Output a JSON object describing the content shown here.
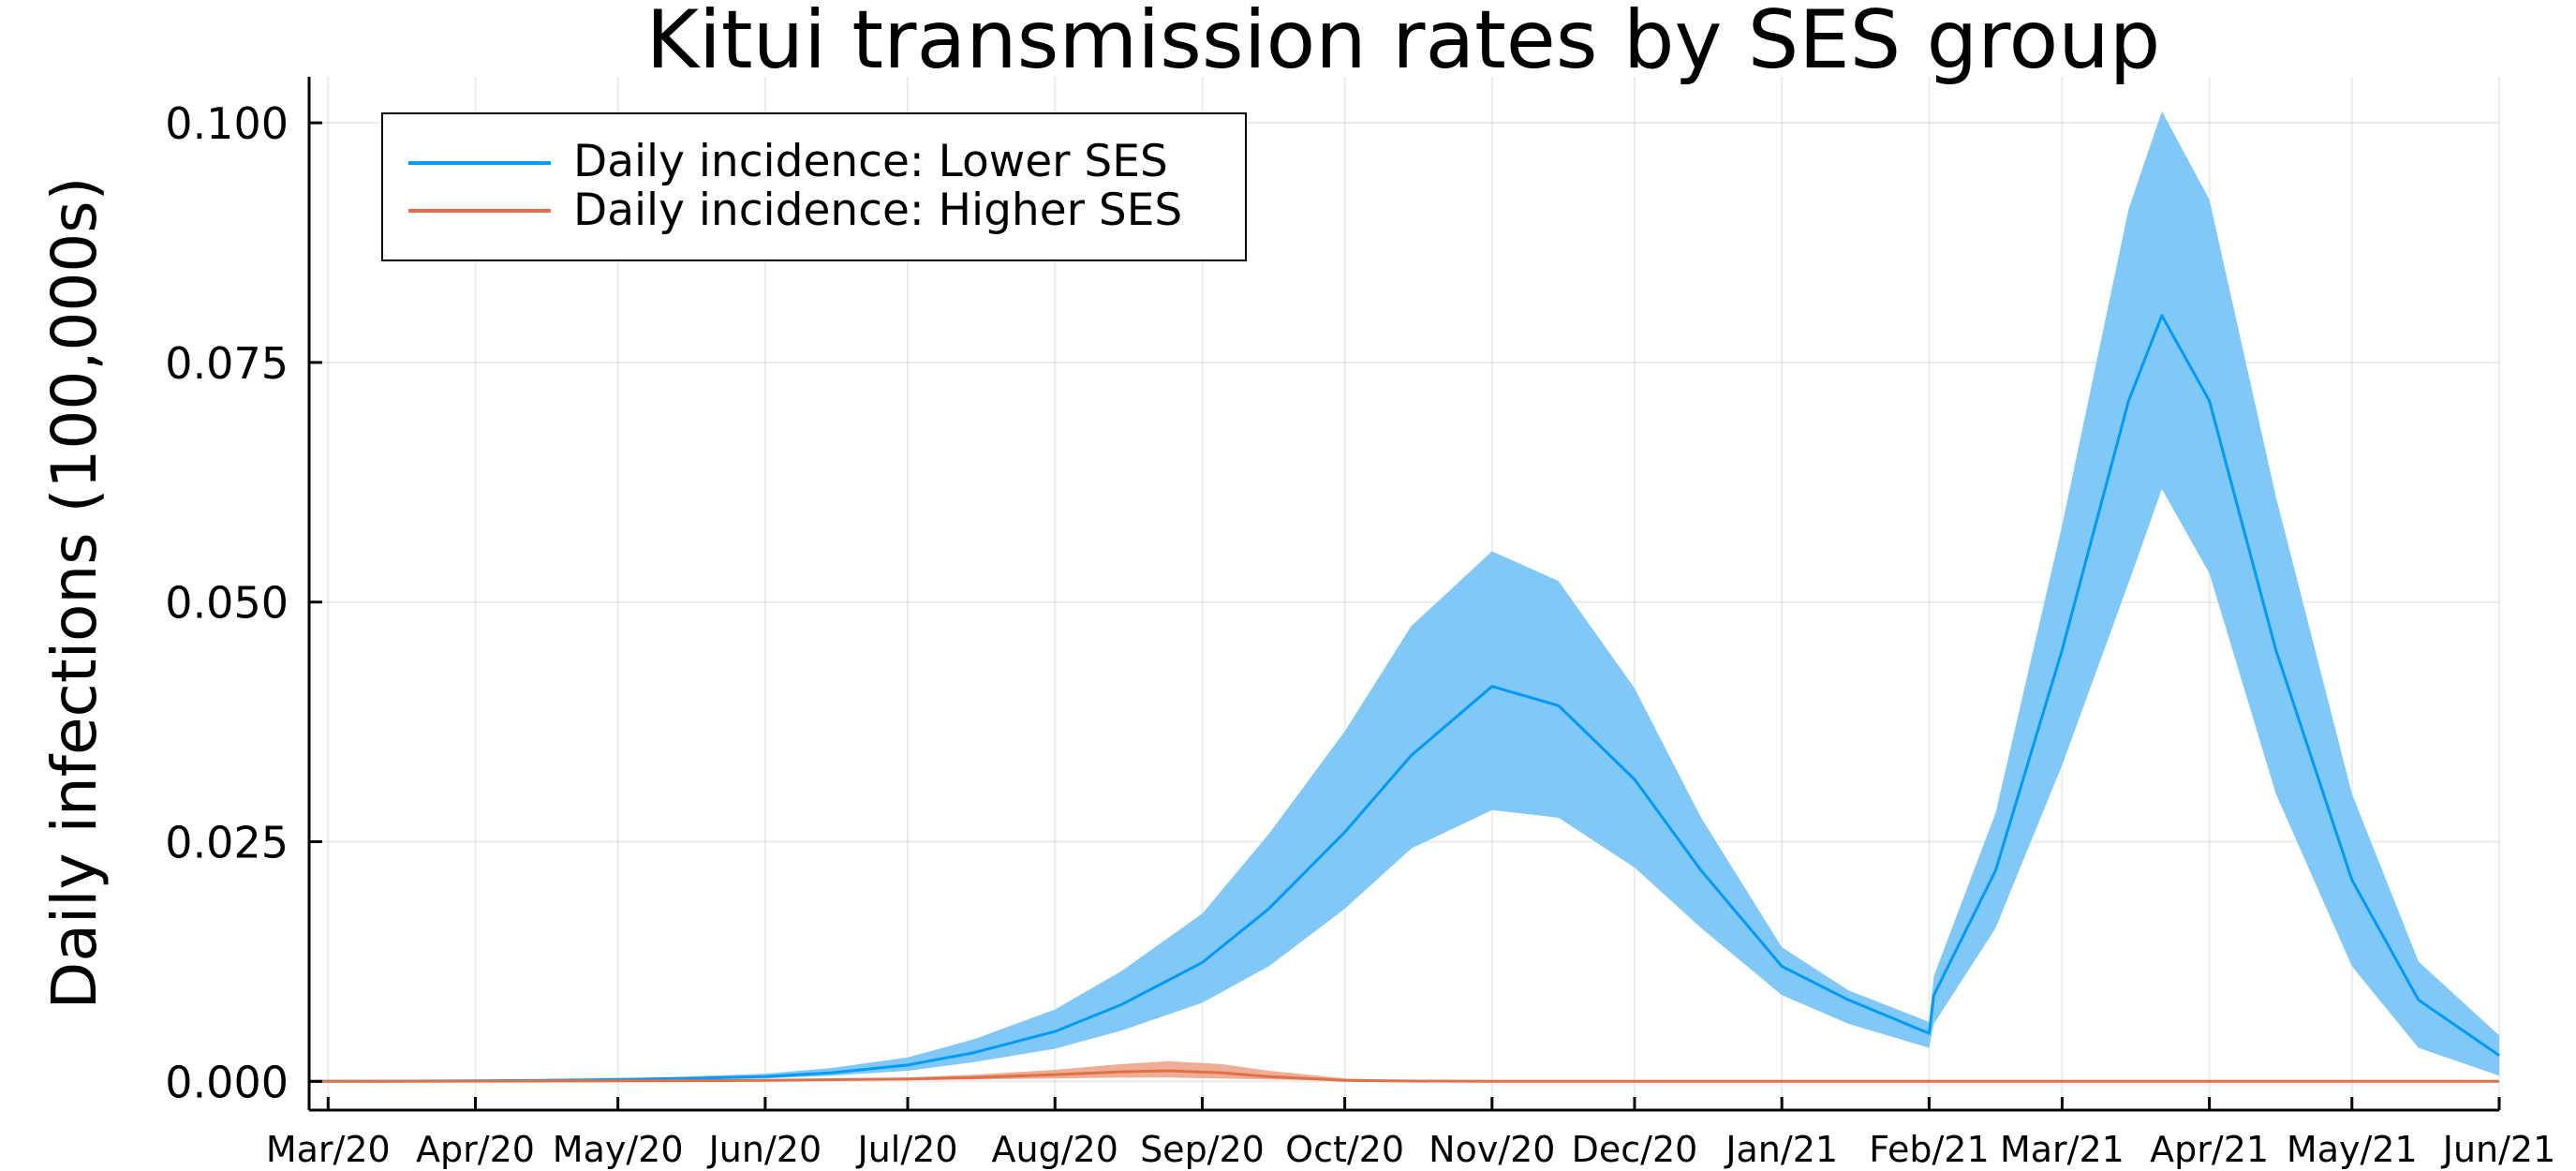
{
  "chart_data": {
    "type": "area",
    "title": "Kitui transmission rates by SES group",
    "xlabel": "",
    "ylabel": "Daily infections (100,000s)",
    "grid": true,
    "legend_position": "top-left",
    "x_axis": {
      "type": "date",
      "range": [
        "2020-02-26",
        "2021-06-01"
      ],
      "ticks": [
        {
          "date": "2020-03-01",
          "label": "Mar/20"
        },
        {
          "date": "2020-04-01",
          "label": "Apr/20"
        },
        {
          "date": "2020-05-01",
          "label": "May/20"
        },
        {
          "date": "2020-06-01",
          "label": "Jun/20"
        },
        {
          "date": "2020-07-01",
          "label": "Jul/20"
        },
        {
          "date": "2020-08-01",
          "label": "Aug/20"
        },
        {
          "date": "2020-09-01",
          "label": "Sep/20"
        },
        {
          "date": "2020-10-01",
          "label": "Oct/20"
        },
        {
          "date": "2020-11-01",
          "label": "Nov/20"
        },
        {
          "date": "2020-12-01",
          "label": "Dec/20"
        },
        {
          "date": "2021-01-01",
          "label": "Jan/21"
        },
        {
          "date": "2021-02-01",
          "label": "Feb/21"
        },
        {
          "date": "2021-03-01",
          "label": "Mar/21"
        },
        {
          "date": "2021-04-01",
          "label": "Apr/21"
        },
        {
          "date": "2021-05-01",
          "label": "May/21"
        },
        {
          "date": "2021-06-01",
          "label": "Jun/21"
        }
      ]
    },
    "y_axis": {
      "range": [
        -0.003,
        0.1048
      ],
      "ticks": [
        0.0,
        0.025,
        0.05,
        0.075,
        0.1
      ],
      "tick_labels": [
        "0.000",
        "0.025",
        "0.050",
        "0.075",
        "0.100"
      ]
    },
    "series": [
      {
        "name": "Daily incidence: Lower SES",
        "color": "#009AFA",
        "band_color": "#80C8F8",
        "x": [
          "2020-02-26",
          "2020-03-15",
          "2020-04-01",
          "2020-04-15",
          "2020-05-01",
          "2020-05-15",
          "2020-06-01",
          "2020-06-15",
          "2020-07-01",
          "2020-07-15",
          "2020-08-01",
          "2020-08-15",
          "2020-09-01",
          "2020-09-15",
          "2020-10-01",
          "2020-10-15",
          "2020-11-01",
          "2020-11-15",
          "2020-12-01",
          "2020-12-15",
          "2021-01-01",
          "2021-01-15",
          "2021-02-01",
          "2021-02-02",
          "2021-02-15",
          "2021-03-01",
          "2021-03-15",
          "2021-03-22",
          "2021-04-01",
          "2021-04-15",
          "2021-05-01",
          "2021-05-15",
          "2021-06-01"
        ],
        "mid": [
          0.0,
          2e-05,
          5e-05,
          0.0001,
          0.0002,
          0.0003,
          0.0005,
          0.0009,
          0.0017,
          0.003,
          0.0052,
          0.008,
          0.0124,
          0.018,
          0.026,
          0.034,
          0.0412,
          0.0392,
          0.0315,
          0.022,
          0.012,
          0.0085,
          0.005,
          0.009,
          0.022,
          0.045,
          0.071,
          0.0799,
          0.071,
          0.045,
          0.021,
          0.0085,
          0.0027
        ],
        "upper": [
          0.0,
          3e-05,
          8e-05,
          0.00015,
          0.0003,
          0.0005,
          0.0008,
          0.0014,
          0.0025,
          0.0044,
          0.0075,
          0.0115,
          0.0175,
          0.0258,
          0.0365,
          0.0475,
          0.0553,
          0.0522,
          0.041,
          0.0275,
          0.014,
          0.0095,
          0.0062,
          0.011,
          0.028,
          0.058,
          0.091,
          0.1012,
          0.092,
          0.061,
          0.03,
          0.0125,
          0.0048
        ],
        "lower": [
          0.0,
          1e-05,
          3e-05,
          6e-05,
          0.0001,
          0.0002,
          0.0003,
          0.0006,
          0.0011,
          0.002,
          0.0034,
          0.0053,
          0.0082,
          0.012,
          0.018,
          0.0243,
          0.0283,
          0.0275,
          0.0223,
          0.016,
          0.009,
          0.006,
          0.0035,
          0.006,
          0.016,
          0.033,
          0.052,
          0.0618,
          0.053,
          0.03,
          0.012,
          0.0035,
          0.0006
        ]
      },
      {
        "name": "Daily incidence: Higher SES",
        "color": "#E26F46",
        "band_color": "#EEAD94",
        "x": [
          "2020-02-26",
          "2020-04-01",
          "2020-05-01",
          "2020-06-01",
          "2020-07-01",
          "2020-07-15",
          "2020-08-01",
          "2020-08-15",
          "2020-08-25",
          "2020-09-05",
          "2020-09-15",
          "2020-10-01",
          "2020-10-15",
          "2020-11-01",
          "2021-06-01"
        ],
        "mid": [
          0.0,
          2e-05,
          5e-05,
          0.0001,
          0.00025,
          0.0004,
          0.0007,
          0.001,
          0.0011,
          0.0009,
          0.0005,
          0.0001,
          3e-05,
          0.0,
          0.0
        ],
        "upper": [
          0.0,
          3e-05,
          8e-05,
          0.00016,
          0.0004,
          0.0007,
          0.0012,
          0.0018,
          0.0021,
          0.0018,
          0.0011,
          0.0003,
          8e-05,
          0.0,
          0.0
        ],
        "lower": [
          0.0,
          1e-05,
          2e-05,
          5e-05,
          0.0001,
          0.0002,
          0.0003,
          0.0004,
          0.0004,
          0.0003,
          0.0002,
          5e-05,
          1e-05,
          0.0,
          0.0
        ]
      }
    ]
  }
}
